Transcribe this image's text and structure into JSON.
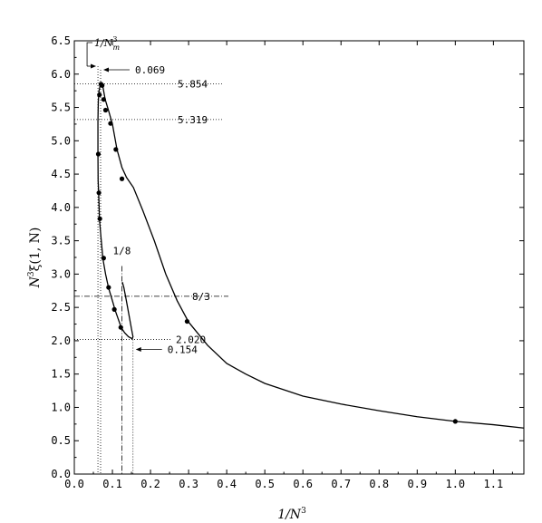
{
  "chart_data": {
    "type": "line",
    "title": "",
    "xlabel": {
      "main": "1/N",
      "sup": "3"
    },
    "ylabel": {
      "main": "N",
      "sup": "3",
      "rest": "ξ(1, N)"
    },
    "xlim": [
      0.0,
      1.18
    ],
    "ylim": [
      0.0,
      6.5
    ],
    "x_ticks": [
      "0.0",
      "0.1",
      "0.2",
      "0.3",
      "0.4",
      "0.5",
      "0.6",
      "0.7",
      "0.8",
      "0.9",
      "1.0",
      "1.1"
    ],
    "y_ticks": [
      "0.0",
      "0.5",
      "1.0",
      "1.5",
      "2.0",
      "2.5",
      "3.0",
      "3.5",
      "4.0",
      "4.5",
      "5.0",
      "5.5",
      "6.0",
      "6.5"
    ],
    "grid": false,
    "series": [
      {
        "curve": [
          [
            1.18,
            0.69
          ],
          [
            1.1,
            0.74
          ],
          [
            1.0,
            0.79
          ],
          [
            0.9,
            0.86
          ],
          [
            0.8,
            0.95
          ],
          [
            0.7,
            1.05
          ],
          [
            0.6,
            1.17
          ],
          [
            0.5,
            1.36
          ],
          [
            0.45,
            1.5
          ],
          [
            0.4,
            1.66
          ],
          [
            0.35,
            1.93
          ],
          [
            0.3,
            2.28
          ],
          [
            0.27,
            2.6
          ],
          [
            0.24,
            3.0
          ],
          [
            0.21,
            3.5
          ],
          [
            0.18,
            3.95
          ],
          [
            0.155,
            4.3
          ],
          [
            0.137,
            4.45
          ],
          [
            0.125,
            4.6
          ],
          [
            0.112,
            4.87
          ],
          [
            0.1,
            5.25
          ],
          [
            0.09,
            5.45
          ],
          [
            0.081,
            5.62
          ],
          [
            0.075,
            5.81
          ],
          [
            0.071,
            5.85
          ],
          [
            0.068,
            5.84
          ],
          [
            0.065,
            5.75
          ],
          [
            0.063,
            5.6
          ],
          [
            0.062,
            5.3
          ],
          [
            0.062,
            4.8
          ],
          [
            0.0625,
            4.4
          ],
          [
            0.064,
            4.2
          ],
          [
            0.066,
            3.82
          ],
          [
            0.07,
            3.55
          ],
          [
            0.075,
            3.23
          ],
          [
            0.082,
            3.0
          ],
          [
            0.09,
            2.79
          ],
          [
            0.1,
            2.6
          ],
          [
            0.107,
            2.46
          ],
          [
            0.115,
            2.33
          ],
          [
            0.123,
            2.2
          ],
          [
            0.132,
            2.12
          ],
          [
            0.142,
            2.06
          ],
          [
            0.152,
            2.03
          ],
          [
            0.154,
            2.06
          ],
          [
            0.15,
            2.18
          ],
          [
            0.143,
            2.4
          ],
          [
            0.136,
            2.62
          ],
          [
            0.13,
            2.8
          ],
          [
            0.126,
            2.88
          ]
        ],
        "markers": [
          [
            1.0,
            0.79
          ],
          [
            0.296,
            2.29
          ],
          [
            0.125,
            4.43
          ],
          [
            0.109,
            4.87
          ],
          [
            0.095,
            5.26
          ],
          [
            0.082,
            5.46
          ],
          [
            0.077,
            5.62
          ],
          [
            0.073,
            5.83
          ],
          [
            0.07,
            5.85
          ],
          [
            0.066,
            5.69
          ],
          [
            0.063,
            4.8
          ],
          [
            0.0645,
            4.22
          ],
          [
            0.067,
            3.83
          ],
          [
            0.077,
            3.24
          ],
          [
            0.09,
            2.8
          ],
          [
            0.105,
            2.47
          ],
          [
            0.122,
            2.2
          ]
        ]
      }
    ],
    "annotations": [
      {
        "text": "0.069",
        "x": 0.069
      },
      {
        "text": "5.854",
        "y": 5.854
      },
      {
        "text": "5.319",
        "y": 5.319
      },
      {
        "text": "1/8",
        "x": 0.125
      },
      {
        "text": "8/3",
        "y": 2.667
      },
      {
        "text": "2.020",
        "y": 2.02
      },
      {
        "text": "0.154",
        "x": 0.154
      },
      {
        "main": "1/N",
        "sup": "3",
        "sub": "m",
        "x": 0.062
      }
    ]
  }
}
